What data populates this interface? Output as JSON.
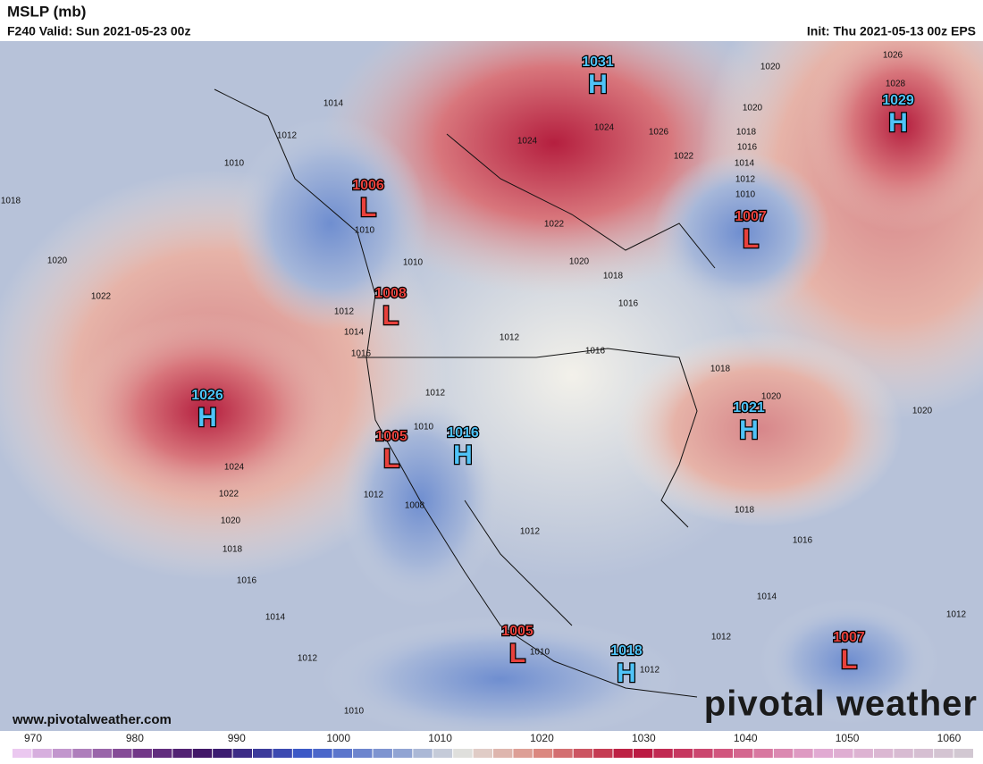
{
  "header": {
    "title": "MSLP (mb)",
    "valid": "F240 Valid: Sun 2021-05-23 00z",
    "init": "Init: Thu 2021-05-13 00z EPS"
  },
  "centers": [
    {
      "value": 1031,
      "type": "H"
    },
    {
      "value": 1029,
      "type": "H"
    },
    {
      "value": 1006,
      "type": "L"
    },
    {
      "value": 1007,
      "type": "L"
    },
    {
      "value": 1008,
      "type": "L"
    },
    {
      "value": 1026,
      "type": "H"
    },
    {
      "value": 1005,
      "type": "L"
    },
    {
      "value": 1016,
      "type": "H"
    },
    {
      "value": 1021,
      "type": "H"
    },
    {
      "value": 1005,
      "type": "L"
    },
    {
      "value": 1018,
      "type": "H"
    },
    {
      "value": 1007,
      "type": "L"
    }
  ],
  "contour_labels": [
    1014,
    1012,
    1010,
    1018,
    1020,
    1022,
    1024,
    1022,
    1020,
    1018,
    1016,
    1014,
    1012,
    1010,
    1012,
    1014,
    1016,
    1010,
    1010,
    1012,
    1010,
    1012,
    1008,
    1012,
    1012,
    1016,
    1016,
    1018,
    1020,
    1022,
    1020,
    1020,
    1018,
    1016,
    1014,
    1012,
    1010,
    1018,
    1020,
    1020,
    1018,
    1016,
    1014,
    1012,
    1012,
    1010,
    1012,
    1026,
    1028,
    1024,
    1026,
    1022,
    1024
  ],
  "colorbar": {
    "ticks": [
      970,
      980,
      990,
      1000,
      1010,
      1020,
      1030,
      1040,
      1050,
      1060
    ]
  },
  "footer": {
    "website": "www.pivotalweather.com",
    "logo": "pivotal weather"
  }
}
